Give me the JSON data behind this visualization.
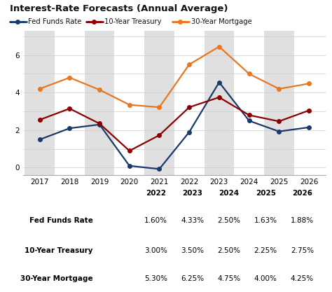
{
  "title": "Interest-Rate Forecasts (Annual Average)",
  "years": [
    2017,
    2018,
    2019,
    2020,
    2021,
    2022,
    2023,
    2024,
    2025,
    2026
  ],
  "fed_funds": [
    1.5,
    2.1,
    2.3,
    0.1,
    -0.07,
    1.9,
    4.55,
    2.5,
    1.93,
    2.15
  ],
  "treasury_10yr": [
    2.55,
    3.15,
    2.35,
    0.9,
    1.73,
    3.22,
    3.75,
    2.8,
    2.47,
    3.05
  ],
  "mortgage_30yr": [
    4.2,
    4.8,
    4.15,
    3.35,
    3.22,
    5.5,
    6.45,
    5.0,
    4.2,
    4.48
  ],
  "fed_color": "#1a3a6b",
  "treasury_color": "#8b0000",
  "mortgage_color": "#e87722",
  "background_color": "#ffffff",
  "shaded_color": "#e0e0e0",
  "ylim": [
    -0.4,
    7.3
  ],
  "yticks": [
    0,
    2,
    4,
    6
  ],
  "ytick_labels": [
    "0",
    "2",
    "4",
    "6"
  ],
  "ytick_lines": [
    0,
    1,
    2,
    3,
    4,
    5,
    6,
    7
  ],
  "table_years": [
    "2022",
    "2023",
    "2024",
    "2025",
    "2026"
  ],
  "table_data": {
    "Fed Funds Rate": [
      "1.60%",
      "4.33%",
      "2.50%",
      "1.63%",
      "1.88%"
    ],
    "10-Year Treasury": [
      "3.00%",
      "3.50%",
      "2.50%",
      "2.25%",
      "2.75%"
    ],
    "30-Year Mortgage": [
      "5.30%",
      "6.25%",
      "4.75%",
      "4.00%",
      "4.25%"
    ]
  },
  "shaded_years": [
    2017,
    2019,
    2021,
    2023,
    2025
  ]
}
